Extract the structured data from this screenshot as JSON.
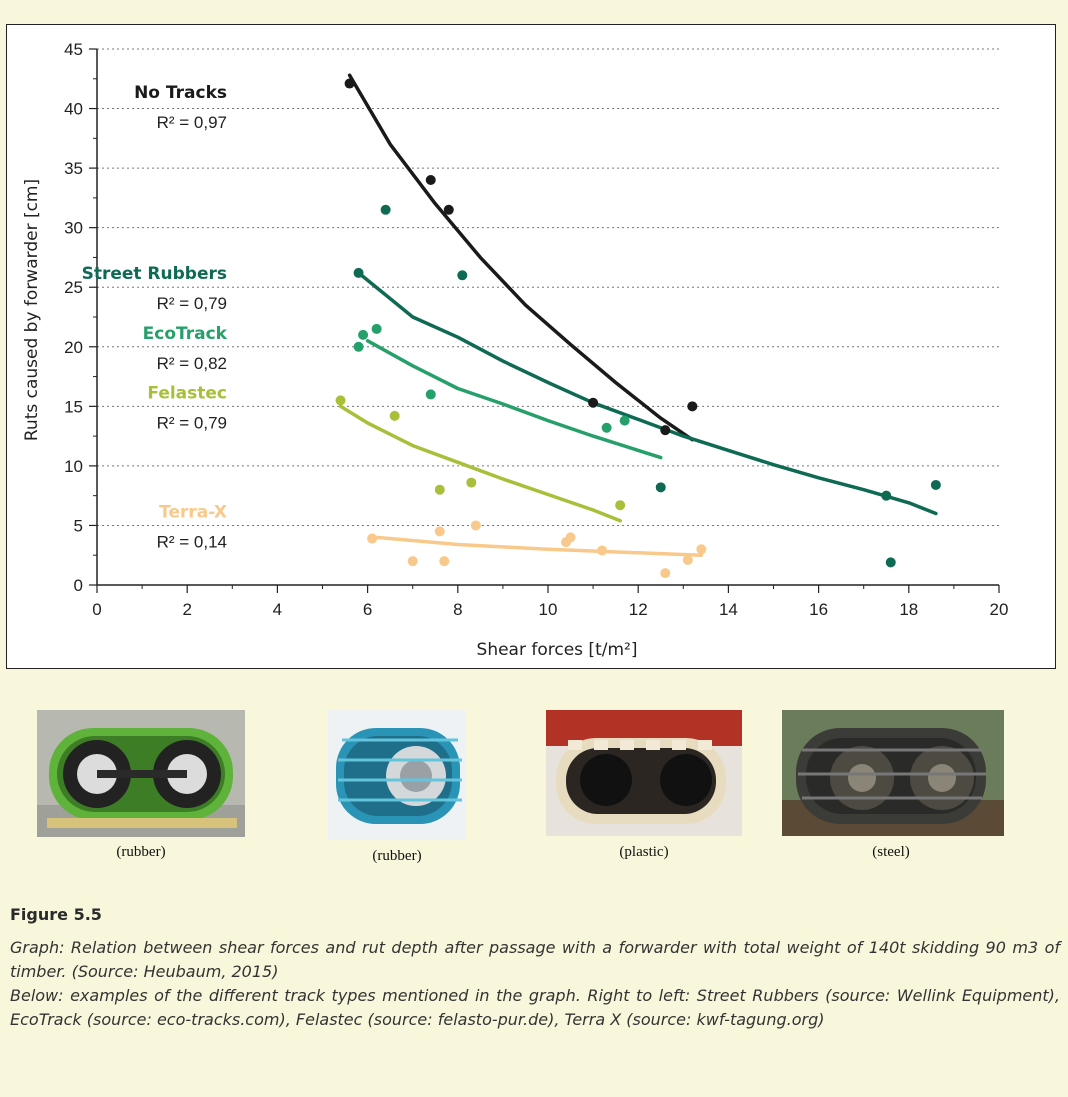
{
  "chart_data": {
    "type": "scatter",
    "title": "",
    "xlabel": "Shear forces [t/m²]",
    "ylabel": "Ruts caused by forwarder [cm]",
    "xlim": [
      0,
      20
    ],
    "ylim": [
      0,
      45
    ],
    "x_ticks": [
      0,
      2,
      4,
      6,
      8,
      10,
      12,
      14,
      16,
      18,
      20
    ],
    "y_ticks": [
      0,
      5,
      10,
      15,
      20,
      25,
      30,
      35,
      40,
      45
    ],
    "grid": "horizontal dotted",
    "series": [
      {
        "name": "No Tracks",
        "r2": "R² = 0,97",
        "color": "#1a1a1a",
        "points": [
          [
            5.6,
            42.1
          ],
          [
            7.4,
            34.0
          ],
          [
            7.8,
            31.5
          ],
          [
            11.0,
            15.3
          ],
          [
            13.2,
            15.0
          ],
          [
            12.6,
            13.0
          ]
        ],
        "trend": [
          [
            5.6,
            42.8
          ],
          [
            6.5,
            37.0
          ],
          [
            7.5,
            32.0
          ],
          [
            8.5,
            27.5
          ],
          [
            9.5,
            23.5
          ],
          [
            10.5,
            20.2
          ],
          [
            11.5,
            17.0
          ],
          [
            12.5,
            14.0
          ],
          [
            13.2,
            12.2
          ]
        ]
      },
      {
        "name": "Street Rubbers",
        "r2": "R² = 0,79",
        "color": "#0e6a52",
        "points": [
          [
            5.8,
            26.2
          ],
          [
            6.4,
            31.5
          ],
          [
            8.1,
            26.0
          ],
          [
            12.5,
            8.2
          ],
          [
            17.5,
            7.5
          ],
          [
            18.6,
            8.4
          ],
          [
            17.6,
            1.9
          ]
        ],
        "trend": [
          [
            5.8,
            26.2
          ],
          [
            7.0,
            22.5
          ],
          [
            8.0,
            20.8
          ],
          [
            9.0,
            18.8
          ],
          [
            10.0,
            17.0
          ],
          [
            11.0,
            15.3
          ],
          [
            12.0,
            13.9
          ],
          [
            13.0,
            12.5
          ],
          [
            14.0,
            11.3
          ],
          [
            15.0,
            10.1
          ],
          [
            16.0,
            9.0
          ],
          [
            17.0,
            8.0
          ],
          [
            18.0,
            6.9
          ],
          [
            18.6,
            6.0
          ]
        ]
      },
      {
        "name": "EcoTrack",
        "r2": "R² = 0,82",
        "color": "#25a06a",
        "points": [
          [
            5.8,
            20.0
          ],
          [
            5.9,
            21.0
          ],
          [
            6.2,
            21.5
          ],
          [
            7.4,
            16.0
          ],
          [
            11.3,
            13.2
          ],
          [
            11.7,
            13.8
          ]
        ],
        "trend": [
          [
            6.0,
            20.5
          ],
          [
            7.0,
            18.4
          ],
          [
            8.0,
            16.5
          ],
          [
            9.0,
            15.2
          ],
          [
            10.0,
            13.8
          ],
          [
            11.0,
            12.5
          ],
          [
            12.0,
            11.3
          ],
          [
            12.5,
            10.7
          ]
        ]
      },
      {
        "name": "Felastec",
        "r2": "R² = 0,79",
        "color": "#a8bf3a",
        "points": [
          [
            5.4,
            15.5
          ],
          [
            6.6,
            14.2
          ],
          [
            7.6,
            8.0
          ],
          [
            8.3,
            8.6
          ],
          [
            11.6,
            6.7
          ]
        ],
        "trend": [
          [
            5.4,
            15.0
          ],
          [
            6.0,
            13.6
          ],
          [
            7.0,
            11.7
          ],
          [
            8.0,
            10.3
          ],
          [
            9.0,
            8.9
          ],
          [
            10.0,
            7.6
          ],
          [
            11.0,
            6.3
          ],
          [
            11.6,
            5.4
          ]
        ]
      },
      {
        "name": "Terra-X",
        "r2": "R² = 0,14",
        "color": "#f8c98a",
        "points": [
          [
            6.1,
            3.9
          ],
          [
            7.0,
            2.0
          ],
          [
            7.6,
            4.5
          ],
          [
            7.7,
            2.0
          ],
          [
            8.4,
            5.0
          ],
          [
            10.4,
            3.6
          ],
          [
            10.5,
            4.0
          ],
          [
            11.2,
            2.9
          ],
          [
            12.6,
            1.0
          ],
          [
            13.1,
            2.1
          ],
          [
            13.4,
            3.0
          ]
        ],
        "trend": [
          [
            6.2,
            4.0
          ],
          [
            8.0,
            3.4
          ],
          [
            10.0,
            3.0
          ],
          [
            12.0,
            2.7
          ],
          [
            13.4,
            2.5
          ]
        ]
      }
    ]
  },
  "photos": [
    {
      "caption": "(rubber)"
    },
    {
      "caption": "(rubber)"
    },
    {
      "caption": "(plastic)"
    },
    {
      "caption": "(steel)"
    }
  ],
  "caption": {
    "label": "Figure 5.5",
    "line1": "Graph: Relation between shear forces and rut depth after passage with a forwarder with total weight of 140t skidding 90 m3 of  timber. (Source: Heubaum, 2015)",
    "line2": "Below: examples of the different track types mentioned in the graph. Right to left: Street Rubbers (source: Wellink Equipment), EcoTrack (source: eco-tracks.com), Felastec (source: felasto-pur.de), Terra X  (source: kwf-tagung.org)"
  }
}
